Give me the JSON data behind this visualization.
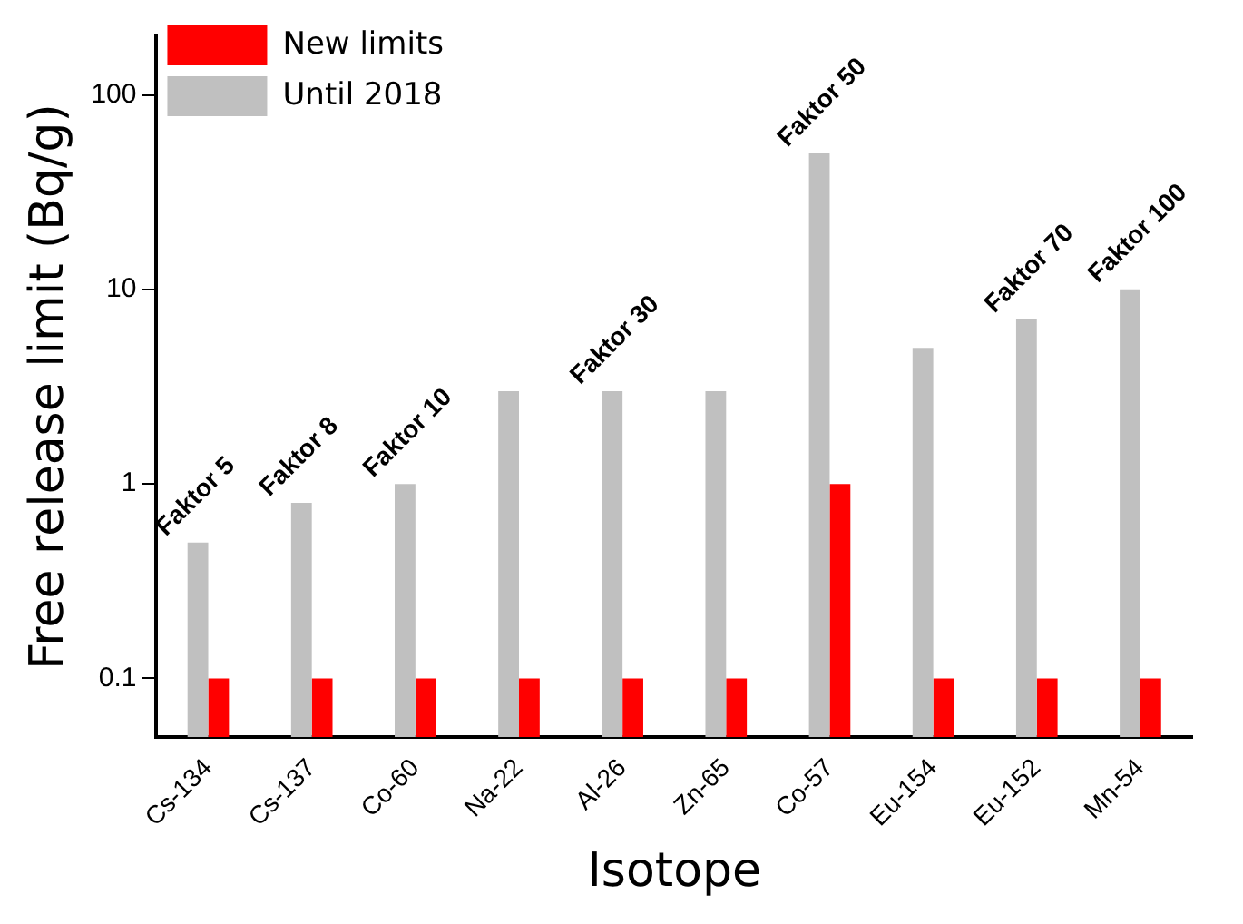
{
  "chart_data": {
    "type": "bar",
    "xlabel": "Isotope",
    "ylabel": "Free release limit (Bq/g)",
    "categories": [
      "Cs-134",
      "Cs-137",
      "Co-60",
      "Na-22",
      "Al-26",
      "Zn-65",
      "Co-57",
      "Eu-154",
      "Eu-152",
      "Mn-54"
    ],
    "series": [
      {
        "name": "Until 2018",
        "color": "#c0c0c0",
        "values": [
          0.5,
          0.8,
          1,
          3,
          3,
          3,
          50,
          5,
          7,
          10
        ]
      },
      {
        "name": "New limits",
        "color": "#ff0000",
        "values": [
          0.1,
          0.1,
          0.1,
          0.1,
          0.1,
          0.1,
          1,
          0.1,
          0.1,
          0.1
        ]
      }
    ],
    "log": "y",
    "ylim": [
      0.05,
      200
    ],
    "yticks": [
      0.1,
      1,
      10,
      100
    ],
    "grid": false,
    "legend": "top left",
    "annotations": [
      {
        "text": "Faktor 5",
        "x": "Cs-134",
        "y": 0.5
      },
      {
        "text": "Faktor 8",
        "x": "Cs-137",
        "y": 0.8
      },
      {
        "text": "Faktor 10",
        "x": "Co-60",
        "y": 1
      },
      {
        "text": "Faktor 30",
        "x": "Al-26",
        "y": 3
      },
      {
        "text": "Faktor 50",
        "x": "Co-57",
        "y": 50
      },
      {
        "text": "Faktor 70",
        "x": "Eu-152",
        "y": 7
      },
      {
        "text": "Faktor 100",
        "x": "Mn-54",
        "y": 10
      }
    ]
  }
}
